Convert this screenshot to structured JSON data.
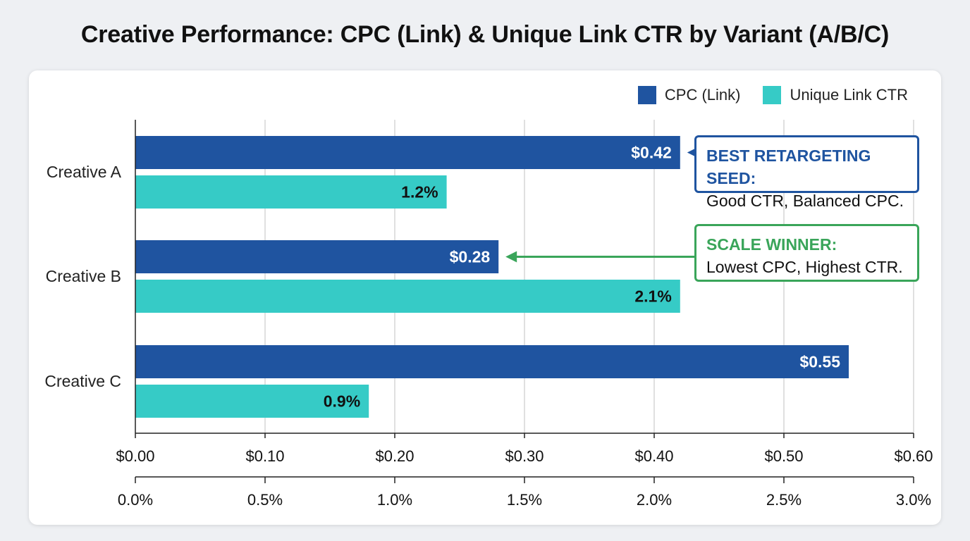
{
  "chart_data": {
    "type": "bar",
    "orientation": "horizontal",
    "title": "Creative Performance: CPC (Link) & Unique Link CTR by Variant (A/B/C)",
    "categories": [
      "Creative A",
      "Creative B",
      "Creative C"
    ],
    "series": [
      {
        "name": "CPC (Link)",
        "values": [
          0.42,
          0.28,
          0.55
        ],
        "labels": [
          "$0.42",
          "$0.28",
          "$0.55"
        ],
        "color": "#1f54a0",
        "axis": "cpc"
      },
      {
        "name": "Unique Link CTR",
        "values": [
          1.2,
          2.1,
          0.9
        ],
        "labels": [
          "1.2%",
          "2.1%",
          "0.9%"
        ],
        "color": "#36cbc6",
        "axis": "ctr"
      }
    ],
    "axes": {
      "cpc": {
        "range": [
          0,
          0.6
        ],
        "ticks": [
          0,
          0.1,
          0.2,
          0.3,
          0.4,
          0.5,
          0.6
        ],
        "tick_labels": [
          "$0.00",
          "$0.10",
          "$0.20",
          "$0.30",
          "$0.40",
          "$0.50",
          "$0.60"
        ]
      },
      "ctr": {
        "range": [
          0,
          3.0
        ],
        "ticks": [
          0,
          0.5,
          1.0,
          1.5,
          2.0,
          2.5,
          3.0
        ],
        "tick_labels": [
          "0.0%",
          "0.5%",
          "1.0%",
          "1.5%",
          "2.0%",
          "2.5%",
          "3.0%"
        ]
      }
    },
    "grid": true,
    "legend_position": "top-right",
    "annotations": [
      {
        "target": "Creative A",
        "series": "CPC (Link)",
        "heading": "BEST RETARGETING SEED:",
        "text": "Good CTR, Balanced CPC.",
        "color": "#1f54a0"
      },
      {
        "target": "Creative B",
        "series": "CPC (Link)",
        "heading": "SCALE WINNER:",
        "text": "Lowest CPC, Highest CTR.",
        "color": "#3aa55a"
      }
    ]
  }
}
